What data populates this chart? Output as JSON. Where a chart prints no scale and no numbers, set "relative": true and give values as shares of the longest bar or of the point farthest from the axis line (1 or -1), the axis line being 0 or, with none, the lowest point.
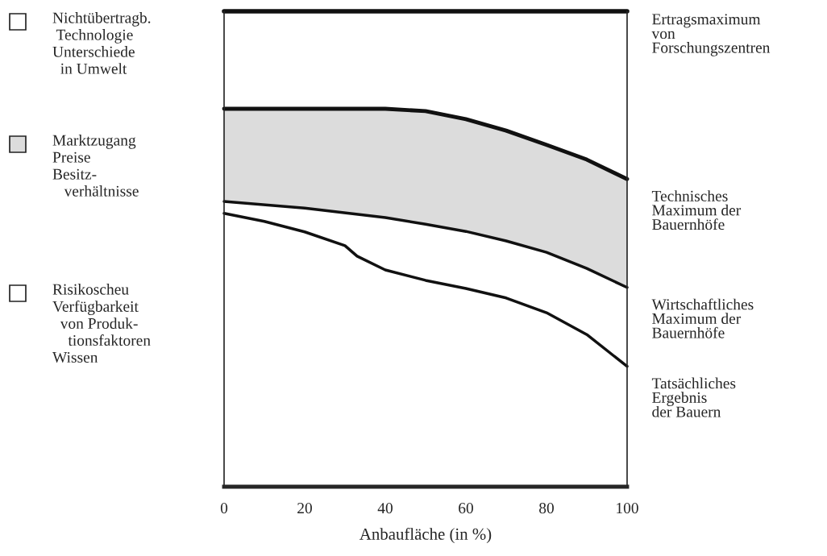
{
  "chart_data": {
    "type": "line",
    "relative": true,
    "xlabel": "Anbaufläche (in %)",
    "xlim": [
      0,
      100
    ],
    "xticks": [
      0,
      20,
      40,
      60,
      80,
      100
    ],
    "grid": false,
    "legend": false,
    "marker": "none",
    "line_style": "solid",
    "series": [
      {
        "name": "Ertragsmaximum\nvon\nForschungszentren",
        "color": "#111111",
        "x": [
          0,
          100
        ],
        "values": [
          1.0,
          1.0
        ]
      },
      {
        "name": "Technisches\nMaximum der\nBauernhöfe",
        "color": "#111111",
        "x": [
          0,
          20,
          40,
          50,
          60,
          70,
          80,
          90,
          100
        ],
        "values": [
          0.795,
          0.795,
          0.795,
          0.79,
          0.773,
          0.749,
          0.719,
          0.688,
          0.647
        ],
        "lower": [
          0.6,
          0.586,
          0.566,
          0.552,
          0.537,
          0.517,
          0.493,
          0.459,
          0.419
        ],
        "upper": [
          0.795,
          0.795,
          0.795,
          0.79,
          0.773,
          0.749,
          0.719,
          0.688,
          0.647
        ]
      },
      {
        "name": "Wirtschaftliches\nMaximum der\nBauernhöfe",
        "color": "#111111",
        "x": [
          0,
          20,
          40,
          50,
          60,
          70,
          80,
          90,
          100
        ],
        "values": [
          0.6,
          0.586,
          0.566,
          0.552,
          0.537,
          0.517,
          0.493,
          0.459,
          0.419
        ]
      },
      {
        "name": "Tatsächliches\nErgebnis\nder Bauern",
        "color": "#111111",
        "x": [
          0,
          10,
          20,
          30,
          33,
          40,
          50,
          60,
          70,
          80,
          90,
          100
        ],
        "values": [
          0.575,
          0.558,
          0.536,
          0.507,
          0.485,
          0.456,
          0.434,
          0.417,
          0.397,
          0.366,
          0.32,
          0.253
        ]
      }
    ],
    "annotations": [
      "Nichtübertragb.\n Technologie\nUnterschiede\n  in Umwelt",
      "Marktzugang\nPreise\nBesitz-\n   verhältnisse",
      "Risikoscheu\nVerfügbarkeit\n  von Produk-\n    tionsfaktoren\nWissen"
    ]
  }
}
